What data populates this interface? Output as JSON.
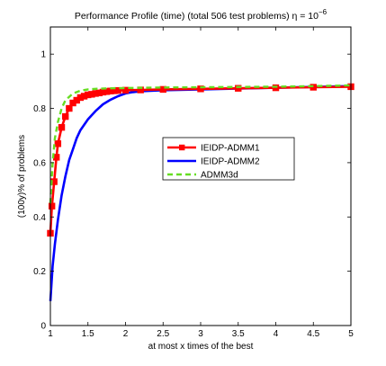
{
  "chart_data": {
    "type": "line",
    "title": "Performance Profile (time) (total 506 test problems) η = 10",
    "title_exponent": "−6",
    "xlabel": "at most x times of the best",
    "ylabel": "(100y)% of problems",
    "xlim": [
      1,
      5
    ],
    "ylim": [
      0,
      1.1
    ],
    "xticks": [
      1,
      1.5,
      2,
      2.5,
      3,
      3.5,
      4,
      4.5,
      5
    ],
    "xtick_labels": [
      "1",
      "1.5",
      "2",
      "2.5",
      "3",
      "3.5",
      "4",
      "4.5",
      "5"
    ],
    "yticks": [
      0,
      0.2,
      0.4,
      0.6,
      0.8,
      1
    ],
    "ytick_labels": [
      "0",
      "0.2",
      "0.4",
      "0.6",
      "0.8",
      "1"
    ],
    "grid": false,
    "legend_position": "center-right",
    "series": [
      {
        "name": "IEIDP-ADMM1",
        "color": "#ff0000",
        "style": "solid-square-markers",
        "x": [
          1.0,
          1.02,
          1.05,
          1.08,
          1.1,
          1.15,
          1.2,
          1.25,
          1.3,
          1.35,
          1.4,
          1.45,
          1.5,
          1.55,
          1.6,
          1.65,
          1.7,
          1.75,
          1.8,
          1.85,
          1.9,
          2.0,
          2.2,
          2.5,
          3.0,
          3.5,
          4.0,
          4.5,
          5.0
        ],
        "y": [
          0.34,
          0.44,
          0.53,
          0.62,
          0.67,
          0.73,
          0.77,
          0.8,
          0.82,
          0.83,
          0.84,
          0.845,
          0.85,
          0.852,
          0.855,
          0.857,
          0.86,
          0.862,
          0.864,
          0.865,
          0.866,
          0.867,
          0.868,
          0.87,
          0.872,
          0.874,
          0.876,
          0.878,
          0.88
        ]
      },
      {
        "name": "IEIDP-ADMM2",
        "color": "#0000ff",
        "style": "solid",
        "x": [
          1.0,
          1.03,
          1.06,
          1.1,
          1.15,
          1.2,
          1.25,
          1.3,
          1.35,
          1.4,
          1.5,
          1.6,
          1.7,
          1.8,
          1.9,
          2.0,
          2.1,
          2.2,
          2.5,
          3.0,
          3.5,
          4.0,
          4.5,
          5.0
        ],
        "y": [
          0.09,
          0.22,
          0.3,
          0.39,
          0.48,
          0.55,
          0.61,
          0.65,
          0.69,
          0.72,
          0.76,
          0.79,
          0.815,
          0.832,
          0.845,
          0.855,
          0.86,
          0.863,
          0.867,
          0.87,
          0.873,
          0.876,
          0.879,
          0.882
        ]
      },
      {
        "name": "ADMM3d",
        "color": "#66dd22",
        "style": "dashed",
        "x": [
          1.0,
          1.03,
          1.06,
          1.1,
          1.15,
          1.2,
          1.3,
          1.4,
          1.5,
          1.6,
          1.8,
          2.0,
          2.5,
          3.0,
          3.5,
          4.0,
          4.5,
          5.0
        ],
        "y": [
          0.45,
          0.6,
          0.69,
          0.75,
          0.8,
          0.83,
          0.855,
          0.865,
          0.87,
          0.872,
          0.874,
          0.875,
          0.877,
          0.878,
          0.879,
          0.88,
          0.882,
          0.885
        ]
      }
    ]
  }
}
